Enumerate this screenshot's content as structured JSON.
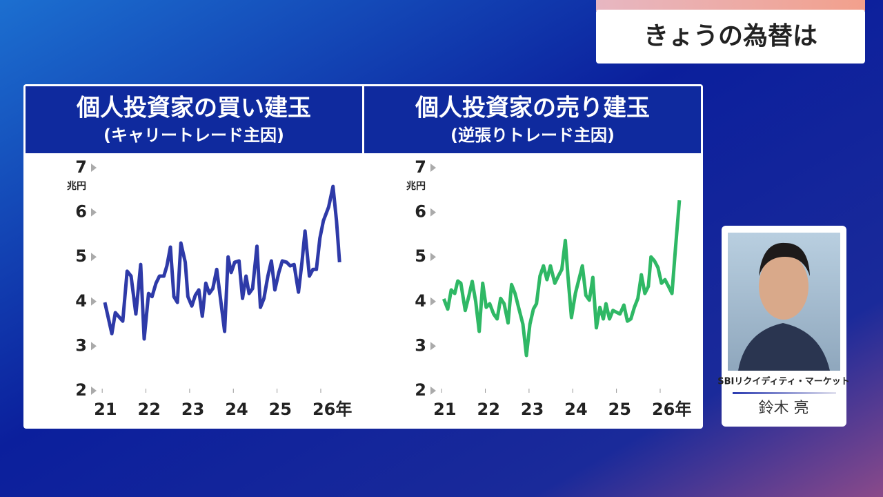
{
  "header": {
    "title": "きょうの為替は"
  },
  "presenter": {
    "company": "SBIリクイディティ・マーケット",
    "name": "鈴木 亮"
  },
  "chart_data": [
    {
      "type": "line",
      "title": "個人投資家の買い建玉",
      "subtitle": "(キャリートレード主因)",
      "y_label": "兆円",
      "xlim": [
        20.95,
        26.6
      ],
      "xticks": [
        21,
        22,
        23,
        24,
        25,
        {
          "value": 26,
          "label": "26年"
        }
      ],
      "ylim": [
        2,
        7
      ],
      "yticks": [
        2,
        3,
        4,
        5,
        6,
        7
      ],
      "grid": false,
      "x": [
        21.06,
        21.22,
        21.3,
        21.47,
        21.57,
        21.66,
        21.77,
        21.88,
        21.96,
        22.06,
        22.14,
        22.23,
        22.31,
        22.41,
        22.48,
        22.56,
        22.64,
        22.72,
        22.8,
        22.9,
        22.96,
        23.05,
        23.13,
        23.21,
        23.29,
        23.37,
        23.45,
        23.53,
        23.62,
        23.7,
        23.8,
        23.88,
        23.95,
        24.03,
        24.13,
        24.21,
        24.29,
        24.36,
        24.44,
        24.54,
        24.62,
        24.7,
        24.79,
        24.87,
        24.95,
        25.04,
        25.12,
        25.22,
        25.3,
        25.39,
        25.49,
        25.57,
        25.64,
        25.74,
        25.82,
        25.9,
        25.98,
        26.06,
        26.18,
        26.28,
        26.36,
        26.43
      ],
      "series": [
        {
          "color": "#2e3aa8",
          "values": [
            3.98,
            3.28,
            3.75,
            3.56,
            4.68,
            4.57,
            3.72,
            4.83,
            3.16,
            4.18,
            4.11,
            4.41,
            4.57,
            4.57,
            4.8,
            5.22,
            4.11,
            3.98,
            5.31,
            4.88,
            4.11,
            3.9,
            4.14,
            4.26,
            3.67,
            4.41,
            4.18,
            4.29,
            4.72,
            4.11,
            3.33,
            5.0,
            4.65,
            4.88,
            4.91,
            4.07,
            4.57,
            4.18,
            4.29,
            5.24,
            3.87,
            4.07,
            4.57,
            4.91,
            4.26,
            4.65,
            4.91,
            4.88,
            4.8,
            4.83,
            4.21,
            4.88,
            5.58,
            4.57,
            4.72,
            4.72,
            5.42,
            5.81,
            6.12,
            6.58,
            5.81,
            4.88
          ]
        }
      ]
    },
    {
      "type": "line",
      "title": "個人投資家の売り建玉",
      "subtitle": "(逆張りトレード主因)",
      "y_label": "兆円",
      "xlim": [
        20.95,
        26.6
      ],
      "xticks": [
        21,
        22,
        23,
        24,
        25,
        {
          "value": 26,
          "label": "26年"
        }
      ],
      "ylim": [
        2,
        7
      ],
      "yticks": [
        2,
        3,
        4,
        5,
        6,
        7
      ],
      "grid": false,
      "x": [
        21.05,
        21.14,
        21.22,
        21.3,
        21.37,
        21.44,
        21.54,
        21.62,
        21.7,
        21.78,
        21.86,
        21.94,
        22.02,
        22.1,
        22.19,
        22.27,
        22.35,
        22.43,
        22.52,
        22.6,
        22.68,
        22.76,
        22.86,
        22.94,
        23.02,
        23.1,
        23.17,
        23.25,
        23.33,
        23.41,
        23.49,
        23.59,
        23.67,
        23.75,
        23.83,
        23.89,
        23.97,
        24.06,
        24.14,
        24.22,
        24.3,
        24.38,
        24.46,
        24.54,
        24.62,
        24.7,
        24.76,
        24.84,
        24.92,
        25.0,
        25.08,
        25.17,
        25.25,
        25.33,
        25.41,
        25.49,
        25.57,
        25.65,
        25.73,
        25.79,
        25.87,
        25.95,
        26.03,
        26.11,
        26.19,
        26.27,
        26.35,
        26.44
      ],
      "series": [
        {
          "color": "#2fb865",
          "values": [
            4.06,
            3.83,
            4.26,
            4.18,
            4.46,
            4.41,
            3.8,
            4.11,
            4.45,
            4.0,
            3.33,
            4.41,
            3.87,
            3.95,
            3.72,
            3.61,
            4.07,
            3.95,
            3.52,
            4.38,
            4.18,
            3.87,
            3.49,
            2.79,
            3.49,
            3.83,
            3.95,
            4.57,
            4.8,
            4.49,
            4.8,
            4.41,
            4.57,
            4.72,
            5.37,
            4.57,
            3.64,
            4.18,
            4.49,
            4.8,
            4.14,
            4.03,
            4.54,
            3.41,
            3.87,
            3.61,
            3.95,
            3.61,
            3.8,
            3.76,
            3.72,
            3.92,
            3.56,
            3.61,
            3.87,
            4.07,
            4.6,
            4.18,
            4.34,
            5.0,
            4.91,
            4.76,
            4.41,
            4.49,
            4.34,
            4.18,
            5.19,
            6.27
          ]
        }
      ]
    }
  ]
}
